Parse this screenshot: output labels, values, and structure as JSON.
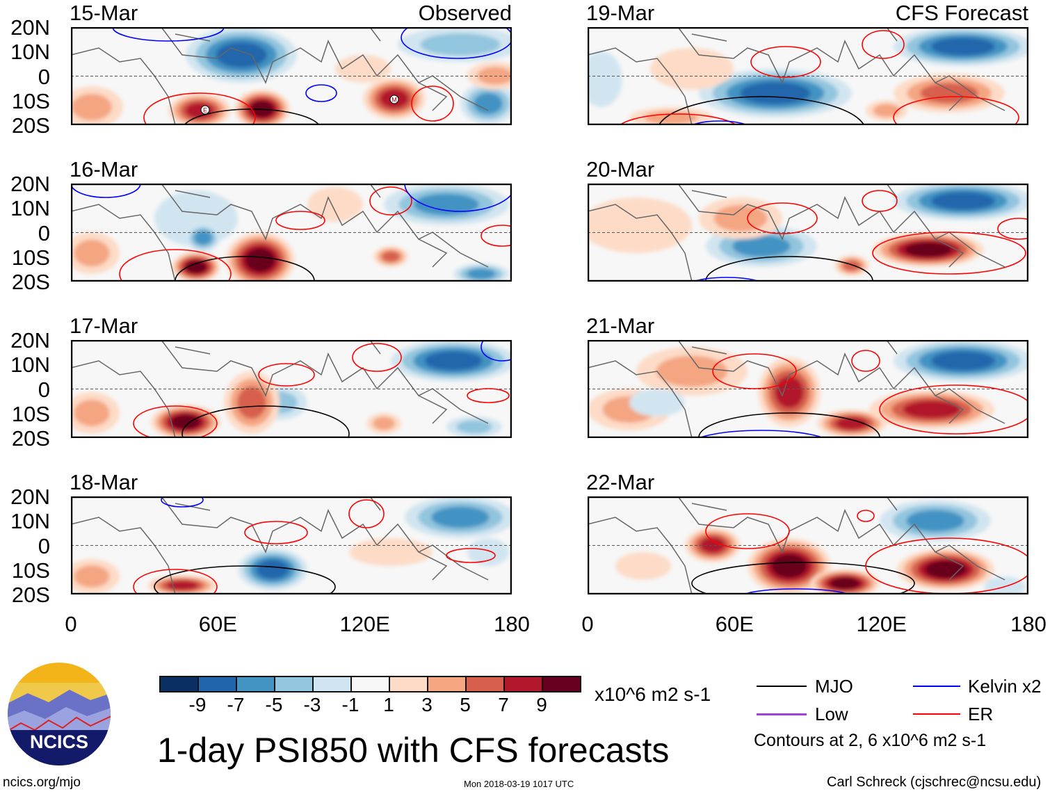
{
  "panels": [
    {
      "date": "15-Mar",
      "label": "Observed",
      "markers": [
        "E",
        "M"
      ]
    },
    {
      "date": "19-Mar",
      "label": "CFS Forecast"
    },
    {
      "date": "16-Mar"
    },
    {
      "date": "20-Mar"
    },
    {
      "date": "17-Mar"
    },
    {
      "date": "21-Mar"
    },
    {
      "date": "18-Mar"
    },
    {
      "date": "22-Mar"
    }
  ],
  "y_ticks": [
    "20N",
    "10N",
    "0",
    "10S",
    "20S"
  ],
  "x_ticks": [
    "0",
    "60E",
    "120E",
    "180"
  ],
  "colorbar": {
    "colors": [
      "#0a2f63",
      "#2166ac",
      "#4393c3",
      "#92c5de",
      "#d1e5f0",
      "#f7f7f7",
      "#fddbc7",
      "#f4a582",
      "#d6604d",
      "#b2182b",
      "#67001f"
    ],
    "labels": [
      "-9",
      "-7",
      "-5",
      "-3",
      "-1",
      "1",
      "3",
      "5",
      "7",
      "9"
    ],
    "units": "x10^6 m2 s-1"
  },
  "title": "1-day PSI850 with CFS forecasts",
  "legend": {
    "items": [
      {
        "label": "MJO",
        "color": "#000000"
      },
      {
        "label": "Kelvin x2",
        "color": "#0000ff"
      },
      {
        "label": "Low",
        "color": "#a040e0"
      },
      {
        "label": "ER",
        "color": "#ff0000"
      }
    ],
    "note": "Contours at 2, 6 x10^6 m2 s-1"
  },
  "footer": {
    "url": "ncics.org/mjo",
    "timestamp": "Mon 2018-03-19 1017 UTC",
    "credit": "Carl Schreck (cjschrec@ncsu.edu)",
    "logo_text": "NCICS"
  }
}
